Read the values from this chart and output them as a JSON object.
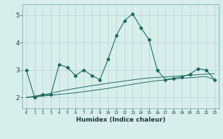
{
  "title": "",
  "xlabel": "Humidex (Indice chaleur)",
  "bg_color": "#d8eeeb",
  "grid_color": "#a8ccc8",
  "line_color": "#1a6b60",
  "x_ticks": [
    0,
    1,
    2,
    3,
    4,
    5,
    6,
    7,
    8,
    9,
    10,
    11,
    12,
    13,
    14,
    15,
    16,
    17,
    18,
    19,
    20,
    21,
    22,
    23
  ],
  "y_ticks": [
    2,
    3,
    4,
    5
  ],
  "ylim": [
    1.6,
    5.4
  ],
  "xlim": [
    -0.5,
    23.5
  ],
  "series1_x": [
    0,
    1,
    2,
    3,
    4,
    5,
    6,
    7,
    8,
    9,
    10,
    11,
    12,
    13,
    14,
    15,
    16,
    17,
    18,
    19,
    20,
    21,
    22,
    23
  ],
  "series1_y": [
    3.0,
    2.0,
    2.1,
    2.1,
    3.2,
    3.1,
    2.8,
    3.0,
    2.8,
    2.65,
    3.4,
    4.25,
    4.8,
    5.05,
    4.55,
    4.1,
    3.0,
    2.65,
    2.7,
    2.75,
    2.85,
    3.05,
    3.0,
    2.65
  ],
  "series2_y": [
    2.0,
    2.05,
    2.1,
    2.15,
    2.22,
    2.28,
    2.33,
    2.38,
    2.43,
    2.47,
    2.52,
    2.56,
    2.6,
    2.64,
    2.68,
    2.71,
    2.73,
    2.75,
    2.77,
    2.79,
    2.81,
    2.83,
    2.85,
    2.87
  ],
  "series3_y": [
    2.0,
    2.02,
    2.05,
    2.08,
    2.11,
    2.14,
    2.17,
    2.21,
    2.25,
    2.29,
    2.33,
    2.38,
    2.43,
    2.48,
    2.53,
    2.57,
    2.61,
    2.64,
    2.67,
    2.7,
    2.72,
    2.74,
    2.76,
    2.65
  ]
}
